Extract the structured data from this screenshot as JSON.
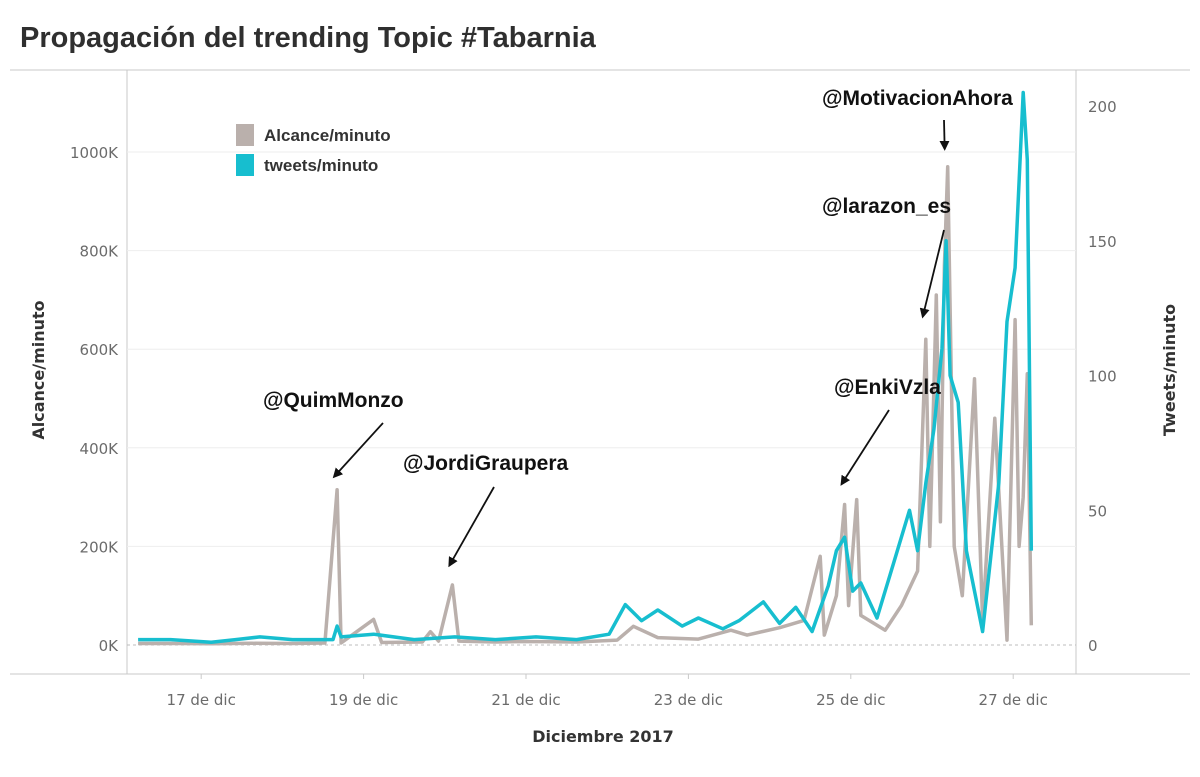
{
  "title": "Propagación del trending Topic #Tabarnia",
  "colors": {
    "alcance": "#bab0ac",
    "tweets": "#17becf",
    "grid": "#eeeeee",
    "axis": "#c9c9c9",
    "arrow": "#111111"
  },
  "chart_data": {
    "type": "line",
    "xlabel": "Diciembre 2017",
    "ylabel_left": "Alcance/minuto",
    "ylabel_right": "Tweets/minuto",
    "x_ticks": [
      "17 de dic",
      "19 de dic",
      "21 de dic",
      "23 de dic",
      "25 de dic",
      "27 de dic"
    ],
    "y_left_ticks": [
      "0K",
      "200K",
      "400K",
      "600K",
      "800K",
      "1000K"
    ],
    "y_left_values": [
      0,
      200000,
      400000,
      600000,
      800000,
      1000000
    ],
    "y_right_ticks": [
      "0",
      "50",
      "100",
      "150",
      "200"
    ],
    "y_right_values": [
      0,
      50,
      100,
      150,
      200
    ],
    "x_range_days": [
      16.0,
      27.4
    ],
    "y_left_range": [
      0,
      1130000
    ],
    "y_right_range": [
      0,
      217
    ],
    "legend": [
      "Alcance/minuto",
      "tweets/minuto"
    ],
    "legend_position": "top-left",
    "grid": true,
    "series": [
      {
        "name": "Alcance/minuto",
        "axis": "left",
        "points": [
          [
            16.1,
            3000
          ],
          [
            16.6,
            3000
          ],
          [
            17.0,
            2500
          ],
          [
            17.5,
            3500
          ],
          [
            18.0,
            3000
          ],
          [
            18.4,
            4000
          ],
          [
            18.55,
            315000
          ],
          [
            18.6,
            4000
          ],
          [
            19.0,
            52000
          ],
          [
            19.1,
            5000
          ],
          [
            19.6,
            6000
          ],
          [
            19.7,
            27000
          ],
          [
            19.8,
            8000
          ],
          [
            19.97,
            122000
          ],
          [
            20.05,
            8000
          ],
          [
            20.5,
            6000
          ],
          [
            20.9,
            7000
          ],
          [
            21.5,
            6000
          ],
          [
            22.0,
            10000
          ],
          [
            22.2,
            38000
          ],
          [
            22.5,
            15000
          ],
          [
            23.0,
            12000
          ],
          [
            23.4,
            30000
          ],
          [
            23.6,
            20000
          ],
          [
            24.0,
            35000
          ],
          [
            24.3,
            50000
          ],
          [
            24.5,
            180000
          ],
          [
            24.55,
            20000
          ],
          [
            24.7,
            100000
          ],
          [
            24.8,
            285000
          ],
          [
            24.85,
            80000
          ],
          [
            24.95,
            295000
          ],
          [
            25.0,
            60000
          ],
          [
            25.3,
            30000
          ],
          [
            25.5,
            80000
          ],
          [
            25.7,
            150000
          ],
          [
            25.8,
            620000
          ],
          [
            25.85,
            200000
          ],
          [
            25.93,
            710000
          ],
          [
            25.98,
            250000
          ],
          [
            26.03,
            770000
          ],
          [
            26.07,
            970000
          ],
          [
            26.15,
            200000
          ],
          [
            26.25,
            100000
          ],
          [
            26.4,
            540000
          ],
          [
            26.5,
            50000
          ],
          [
            26.65,
            460000
          ],
          [
            26.8,
            10000
          ],
          [
            26.9,
            660000
          ],
          [
            26.95,
            200000
          ],
          [
            27.0,
            300000
          ],
          [
            27.05,
            550000
          ],
          [
            27.1,
            40000
          ]
        ]
      },
      {
        "name": "tweets/minuto",
        "axis": "right",
        "points": [
          [
            16.1,
            2
          ],
          [
            16.5,
            2
          ],
          [
            17.0,
            1
          ],
          [
            17.3,
            2
          ],
          [
            17.6,
            3
          ],
          [
            18.0,
            2
          ],
          [
            18.5,
            2
          ],
          [
            18.55,
            7
          ],
          [
            18.6,
            3
          ],
          [
            19.0,
            4
          ],
          [
            19.5,
            2
          ],
          [
            20.0,
            3
          ],
          [
            20.5,
            2
          ],
          [
            21.0,
            3
          ],
          [
            21.5,
            2
          ],
          [
            21.9,
            4
          ],
          [
            22.1,
            15
          ],
          [
            22.3,
            9
          ],
          [
            22.5,
            13
          ],
          [
            22.8,
            7
          ],
          [
            23.0,
            10
          ],
          [
            23.3,
            6
          ],
          [
            23.5,
            9
          ],
          [
            23.8,
            16
          ],
          [
            24.0,
            8
          ],
          [
            24.2,
            14
          ],
          [
            24.4,
            5
          ],
          [
            24.6,
            22
          ],
          [
            24.7,
            35
          ],
          [
            24.8,
            40
          ],
          [
            24.9,
            20
          ],
          [
            25.0,
            23
          ],
          [
            25.2,
            10
          ],
          [
            25.4,
            30
          ],
          [
            25.6,
            50
          ],
          [
            25.7,
            35
          ],
          [
            25.8,
            60
          ],
          [
            25.9,
            80
          ],
          [
            26.0,
            110
          ],
          [
            26.05,
            150
          ],
          [
            26.1,
            100
          ],
          [
            26.2,
            90
          ],
          [
            26.3,
            35
          ],
          [
            26.5,
            5
          ],
          [
            26.7,
            60
          ],
          [
            26.8,
            120
          ],
          [
            26.9,
            140
          ],
          [
            27.0,
            205
          ],
          [
            27.05,
            180
          ],
          [
            27.1,
            35
          ]
        ]
      }
    ],
    "annotations": [
      {
        "label": "@QuimMonzo",
        "target_day": 18.55,
        "target_alcance": 325000
      },
      {
        "label": "@JordiGraupera",
        "target_day": 19.97,
        "target_alcance": 145000
      },
      {
        "label": "@EnkiVzla",
        "target_day": 24.8,
        "target_alcance": 310000
      },
      {
        "label": "@larazon_es",
        "target_day": 25.8,
        "target_alcance": 650000
      },
      {
        "label": "@MotivacionAhora",
        "target_day": 26.07,
        "target_alcance": 990000
      }
    ]
  }
}
